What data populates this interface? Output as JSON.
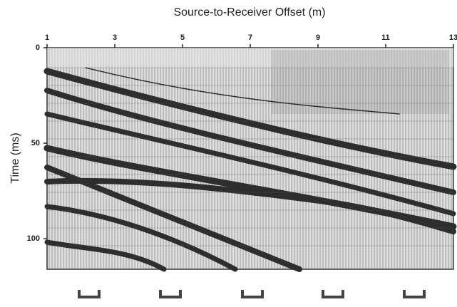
{
  "chart_data": {
    "type": "seismogram",
    "title": "Source-to-Receiver Offset (m)",
    "y_label": "Time (ms)",
    "xlim": [
      1,
      13
    ],
    "xticks": [
      1,
      3,
      5,
      7,
      9,
      11,
      13
    ],
    "ylim": [
      0,
      116
    ],
    "yticks": [
      0,
      50,
      100
    ]
  }
}
